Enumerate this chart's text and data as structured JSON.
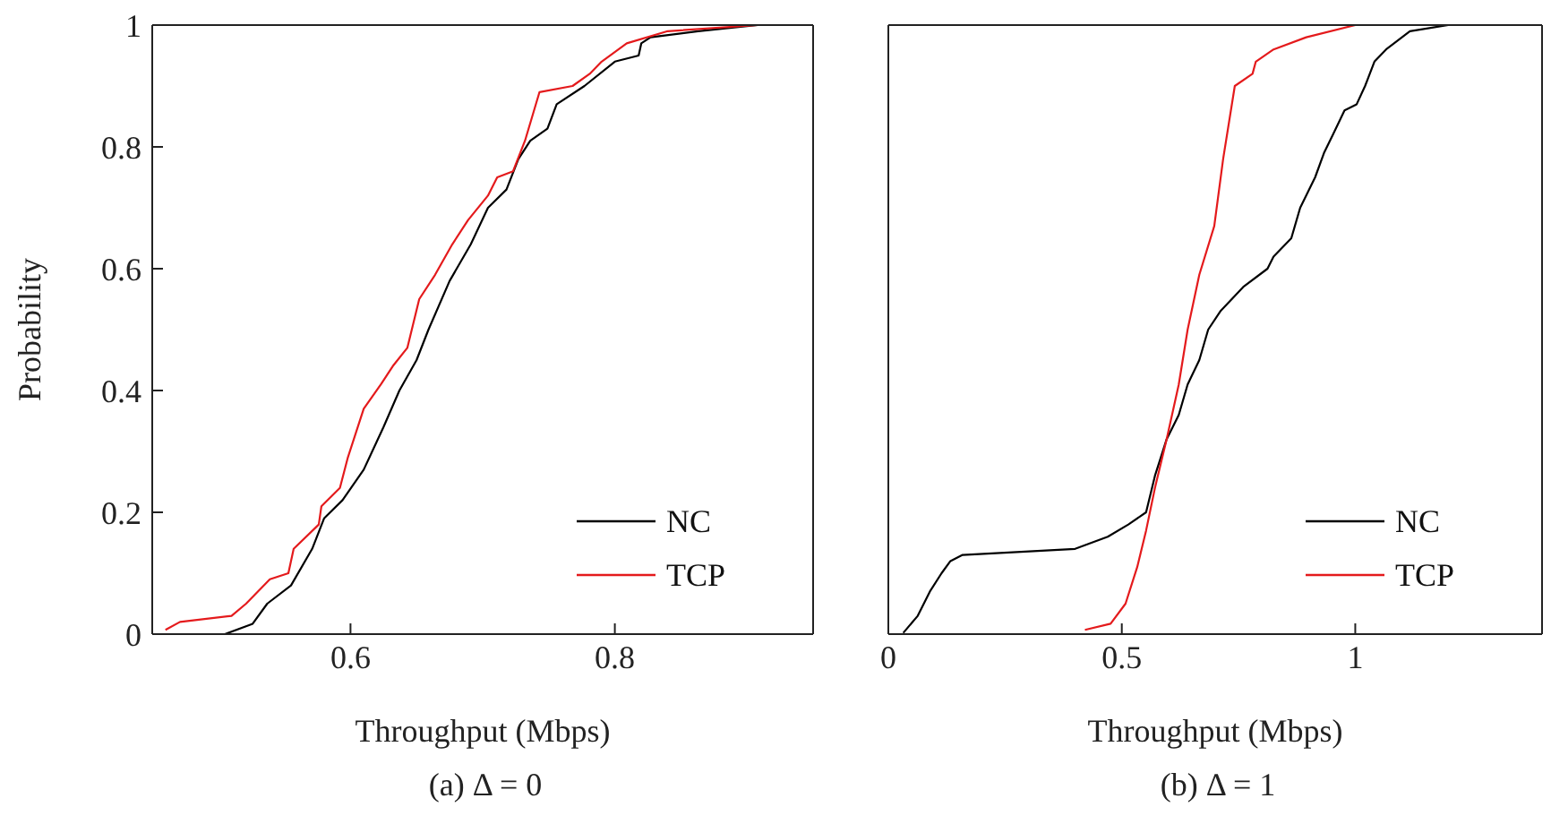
{
  "chart_data": [
    {
      "type": "line",
      "title": "(a) Δ = 0",
      "xlabel": "Throughput (Mbps)",
      "ylabel": "Probability",
      "xlim": [
        0.45,
        0.95
      ],
      "xticks": [
        0.6,
        0.8
      ],
      "ylim": [
        0,
        1
      ],
      "yticks": [
        0,
        0.2,
        0.4,
        0.6,
        0.8,
        1
      ],
      "legend": "bottom right",
      "grid": false,
      "marker": "none",
      "series": [
        {
          "name": "NC",
          "color": "#000000",
          "x": [
            0.505,
            0.526,
            0.537,
            0.555,
            0.571,
            0.58,
            0.594,
            0.61,
            0.625,
            0.637,
            0.65,
            0.659,
            0.675,
            0.691,
            0.704,
            0.718,
            0.727,
            0.736,
            0.749,
            0.756,
            0.777,
            0.8,
            0.818,
            0.82,
            0.827,
            0.863,
            0.908
          ],
          "values": [
            0,
            0.017,
            0.05,
            0.08,
            0.14,
            0.19,
            0.22,
            0.27,
            0.34,
            0.4,
            0.45,
            0.5,
            0.58,
            0.64,
            0.7,
            0.73,
            0.78,
            0.81,
            0.83,
            0.87,
            0.9,
            0.94,
            0.95,
            0.97,
            0.98,
            0.99,
            1
          ]
        },
        {
          "name": "TCP",
          "color": "#e41a1c",
          "x": [
            0.46,
            0.471,
            0.51,
            0.521,
            0.539,
            0.553,
            0.557,
            0.576,
            0.578,
            0.592,
            0.598,
            0.61,
            0.623,
            0.632,
            0.643,
            0.652,
            0.664,
            0.677,
            0.689,
            0.704,
            0.711,
            0.723,
            0.732,
            0.743,
            0.768,
            0.781,
            0.79,
            0.809,
            0.84,
            0.908
          ],
          "values": [
            0.007,
            0.02,
            0.03,
            0.05,
            0.09,
            0.1,
            0.14,
            0.18,
            0.21,
            0.24,
            0.29,
            0.37,
            0.41,
            0.44,
            0.47,
            0.55,
            0.59,
            0.64,
            0.68,
            0.72,
            0.75,
            0.76,
            0.81,
            0.89,
            0.9,
            0.92,
            0.94,
            0.97,
            0.99,
            1
          ]
        }
      ]
    },
    {
      "type": "line",
      "title": "(b) Δ = 1",
      "xlabel": "Throughput (Mbps)",
      "xlim": [
        0,
        1.4
      ],
      "xticks": [
        0,
        0.5,
        1
      ],
      "ylim": [
        0,
        1
      ],
      "yticks": [
        0,
        0.2,
        0.4,
        0.6,
        0.8,
        1
      ],
      "tick_labels": "x",
      "legend": "bottom right",
      "grid": false,
      "marker": "none",
      "series": [
        {
          "name": "NC",
          "color": "#000000",
          "x": [
            0.032,
            0.063,
            0.089,
            0.114,
            0.133,
            0.159,
            0.4,
            0.47,
            0.514,
            0.552,
            0.571,
            0.596,
            0.622,
            0.641,
            0.666,
            0.685,
            0.711,
            0.76,
            0.812,
            0.825,
            0.863,
            0.882,
            0.914,
            0.933,
            0.952,
            0.977,
            1.003,
            1.021,
            1.041,
            1.066,
            1.117,
            1.199
          ],
          "values": [
            0.002,
            0.03,
            0.07,
            0.1,
            0.12,
            0.13,
            0.14,
            0.16,
            0.18,
            0.2,
            0.26,
            0.32,
            0.36,
            0.41,
            0.45,
            0.5,
            0.53,
            0.57,
            0.6,
            0.62,
            0.65,
            0.7,
            0.75,
            0.79,
            0.82,
            0.86,
            0.87,
            0.9,
            0.94,
            0.96,
            0.99,
            1
          ]
        },
        {
          "name": "TCP",
          "color": "#e41a1c",
          "x": [
            0.421,
            0.476,
            0.508,
            0.533,
            0.552,
            0.571,
            0.596,
            0.622,
            0.641,
            0.666,
            0.698,
            0.717,
            0.742,
            0.78,
            0.787,
            0.825,
            0.895,
            1.0
          ],
          "values": [
            0.007,
            0.017,
            0.05,
            0.11,
            0.17,
            0.24,
            0.32,
            0.41,
            0.5,
            0.59,
            0.67,
            0.78,
            0.9,
            0.92,
            0.94,
            0.96,
            0.98,
            1
          ]
        }
      ]
    }
  ]
}
